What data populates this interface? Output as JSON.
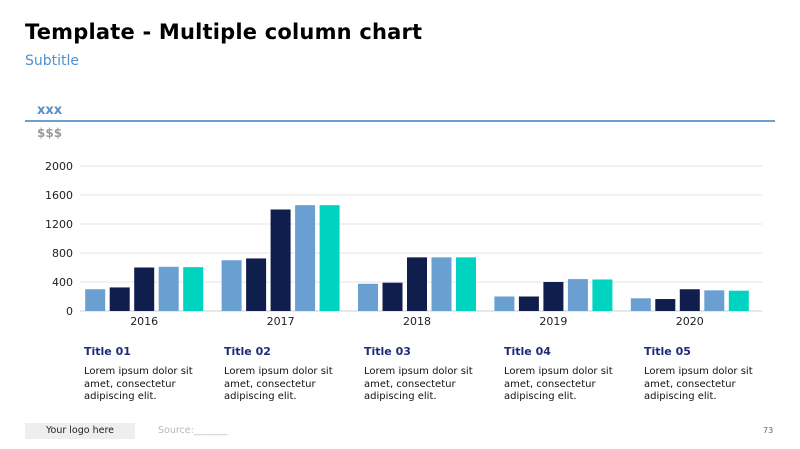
{
  "header": {
    "title": "Template - Multiple column chart",
    "subtitle": "Subtitle"
  },
  "legend_block": {
    "label": "xxx",
    "unit": "$$$"
  },
  "colors": {
    "series": [
      "#6a9fd2",
      "#0f1e4d",
      "#0f1e4d",
      "#6a9fd2",
      "#00d4c0"
    ]
  },
  "chart_data": {
    "type": "bar",
    "categories": [
      "2016",
      "2017",
      "2018",
      "2019",
      "2020"
    ],
    "series": [
      {
        "values": [
          300,
          700,
          375,
          200,
          175
        ]
      },
      {
        "values": [
          325,
          725,
          390,
          200,
          165
        ]
      },
      {
        "values": [
          600,
          1400,
          740,
          400,
          300
        ]
      },
      {
        "values": [
          610,
          1460,
          740,
          440,
          285
        ]
      },
      {
        "values": [
          605,
          1460,
          740,
          435,
          280
        ]
      }
    ],
    "yticks": [
      "0",
      "400",
      "800",
      "1200",
      "1600",
      "2000"
    ],
    "ylim": [
      0,
      2000
    ],
    "grid": true
  },
  "columns": [
    {
      "title": "Title 01",
      "text": "Lorem ipsum dolor sit amet, consectetur adipiscing elit."
    },
    {
      "title": "Title 02",
      "text": "Lorem ipsum dolor sit amet, consectetur adipiscing elit."
    },
    {
      "title": "Title 03",
      "text": "Lorem ipsum dolor sit amet, consectetur adipiscing elit."
    },
    {
      "title": "Title 04",
      "text": "Lorem ipsum dolor sit amet, consectetur adipiscing elit."
    },
    {
      "title": "Title 05",
      "text": "Lorem ipsum dolor sit amet, consectetur adipiscing elit."
    }
  ],
  "footer": {
    "logo": "Your logo here",
    "source": "Source:_______",
    "page": "73"
  }
}
